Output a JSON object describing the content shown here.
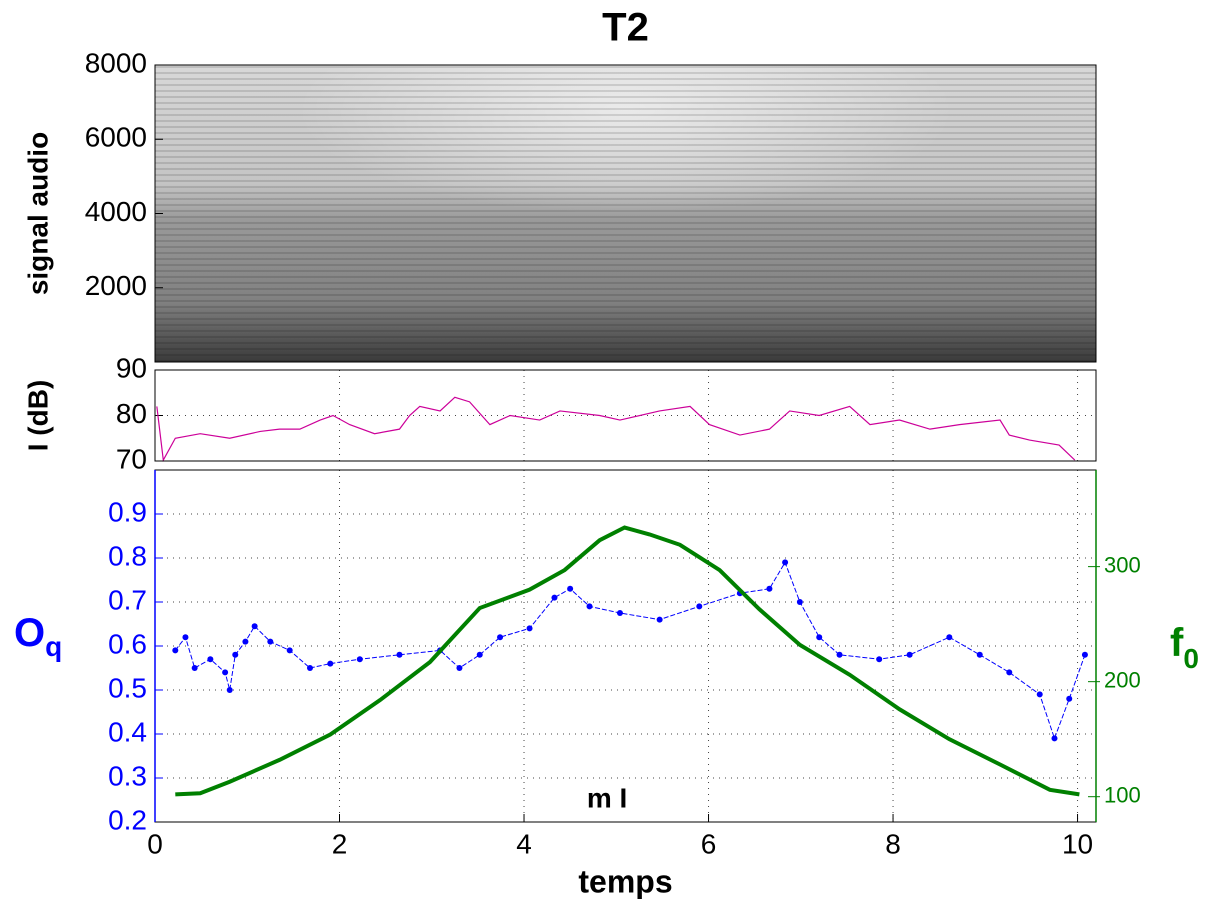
{
  "chart_data": [
    {
      "type": "spectrogram",
      "title": "T2",
      "ylabel": "signal audio",
      "xlim": [
        0,
        10.2
      ],
      "ylim": [
        0,
        8000
      ],
      "yticks": [
        2000,
        4000,
        6000,
        8000
      ]
    },
    {
      "type": "line",
      "ylabel": "I (dB)",
      "xlim": [
        0,
        10.2
      ],
      "ylim": [
        70,
        90
      ],
      "yticks": [
        70,
        80,
        90
      ],
      "xticks": [
        0,
        2,
        4,
        6,
        8,
        10
      ],
      "grid": true,
      "series": [
        {
          "color": "#cc0099",
          "x": [
            0.02,
            0.09,
            0.22,
            0.49,
            0.81,
            1.14,
            1.35,
            1.57,
            1.79,
            1.93,
            2.11,
            2.38,
            2.65,
            2.76,
            2.87,
            3.09,
            3.25,
            3.41,
            3.63,
            3.85,
            4.17,
            4.39,
            4.82,
            5.04,
            5.47,
            5.8,
            6.01,
            6.34,
            6.66,
            6.88,
            7.2,
            7.53,
            7.75,
            8.07,
            8.4,
            8.72,
            9.16,
            9.26,
            9.48,
            9.8,
            9.97
          ],
          "values": [
            82,
            70.2,
            75,
            76,
            75,
            76.5,
            77,
            77,
            79,
            80,
            78,
            76,
            77,
            80,
            82,
            81,
            84,
            83,
            78,
            80,
            79,
            81,
            80,
            79,
            81,
            82,
            78,
            75.7,
            77,
            81,
            80,
            82,
            78,
            79,
            77,
            78,
            79,
            75.7,
            74.6,
            73.5,
            70.2
          ]
        }
      ]
    },
    {
      "type": "line",
      "xlabel": "temps",
      "ylabel": {
        "text": "O",
        "subscript": "q"
      },
      "y2label": {
        "text": "f",
        "subscript": "0"
      },
      "annotation": "m I",
      "xlim": [
        0,
        10.2
      ],
      "xticks": [
        0,
        2,
        4,
        6,
        8,
        10
      ],
      "ylim": [
        0.2,
        1.0
      ],
      "yticks": [
        0.2,
        0.3,
        0.4,
        0.5,
        0.6,
        0.7,
        0.8,
        0.9
      ],
      "y2lim": [
        78,
        384
      ],
      "y2ticks": [
        100,
        200,
        300
      ],
      "grid": true,
      "ycolor": "#0000ff",
      "y2color": "#008000",
      "series": [
        {
          "color": "#0000ff",
          "marker": true,
          "x": [
            0.22,
            0.33,
            0.43,
            0.6,
            0.76,
            0.81,
            0.87,
            0.98,
            1.08,
            1.25,
            1.46,
            1.68,
            1.9,
            2.22,
            2.65,
            3.09,
            3.3,
            3.52,
            3.74,
            4.06,
            4.33,
            4.5,
            4.71,
            5.04,
            5.47,
            5.9,
            6.34,
            6.66,
            6.83,
            6.99,
            7.2,
            7.42,
            7.85,
            8.18,
            8.61,
            8.94,
            9.26,
            9.59,
            9.75,
            9.91,
            10.08
          ],
          "values": [
            0.59,
            0.62,
            0.55,
            0.57,
            0.54,
            0.5,
            0.58,
            0.61,
            0.645,
            0.61,
            0.59,
            0.55,
            0.56,
            0.57,
            0.58,
            0.59,
            0.55,
            0.58,
            0.62,
            0.64,
            0.71,
            0.73,
            0.69,
            0.675,
            0.66,
            0.69,
            0.72,
            0.73,
            0.79,
            0.7,
            0.62,
            0.58,
            0.57,
            0.58,
            0.62,
            0.58,
            0.54,
            0.49,
            0.39,
            0.48,
            0.58
          ]
        },
        {
          "color": "#008000",
          "axis": "y2",
          "x": [
            0.22,
            0.49,
            0.81,
            1.35,
            1.9,
            2.44,
            2.98,
            3.52,
            4.06,
            4.44,
            4.82,
            5.09,
            5.36,
            5.69,
            6.12,
            6.55,
            6.99,
            7.53,
            8.07,
            8.61,
            9.16,
            9.7,
            10.02
          ],
          "values": [
            102,
            103,
            113,
            132,
            154,
            184,
            217,
            264,
            280,
            297,
            323,
            334,
            328,
            319,
            297,
            263,
            232,
            206,
            176,
            150,
            128,
            106,
            102
          ]
        }
      ]
    }
  ]
}
